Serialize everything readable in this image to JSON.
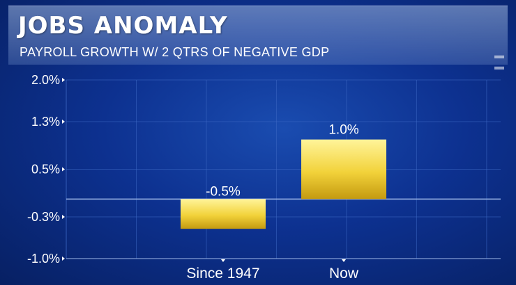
{
  "header": {
    "title": "JOBS ANOMALY",
    "subtitle": "PAYROLL GROWTH W/ 2 QTRS OF NEGATIVE GDP"
  },
  "colors": {
    "bar_top": "#fff49a",
    "bar_mid": "#f2d23a",
    "bar_bottom": "#c49a10",
    "grid": "#3d68c4",
    "axis": "#9fb8e8"
  },
  "chart_data": {
    "type": "bar",
    "title": "JOBS ANOMALY",
    "subtitle": "PAYROLL GROWTH W/ 2 QTRS OF NEGATIVE GDP",
    "categories": [
      "Since 1947",
      "Now"
    ],
    "values": [
      -0.5,
      1.0
    ],
    "data_labels": [
      "-0.5%",
      "1.0%"
    ],
    "ylim": [
      -1.0,
      2.0
    ],
    "yticks": [
      2.0,
      1.3,
      0.5,
      -0.3,
      -1.0
    ],
    "ytick_labels": [
      "2.0%",
      "1.3%",
      "0.5%",
      "-0.3%",
      "-1.0%"
    ],
    "xlabel": "",
    "ylabel": "",
    "grid": true,
    "legend": "none"
  }
}
